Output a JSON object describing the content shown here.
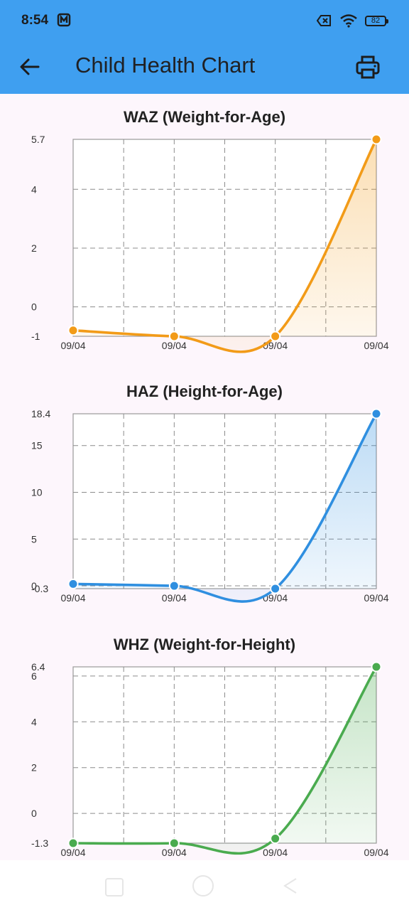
{
  "status_bar": {
    "time": "8:54",
    "battery": "82",
    "icons": [
      "notification-icon",
      "sim-off-icon",
      "wifi-icon",
      "battery-icon"
    ]
  },
  "app_bar": {
    "title": "Child Health Chart",
    "back_icon": "arrow-left-icon",
    "print_icon": "printer-icon",
    "background": "#3f9ff0"
  },
  "chart_data": [
    {
      "type": "area",
      "title": "WAZ (Weight-for-Age)",
      "color": "#f29b18",
      "categories": [
        "09/04",
        "09/04",
        "09/04",
        "09/04"
      ],
      "x": [
        0,
        1,
        2,
        3
      ],
      "values": [
        -0.8,
        -1.0,
        -1.0,
        5.7
      ],
      "ylim": [
        -1,
        5.7
      ],
      "y_ticks": [
        -1,
        0,
        2,
        4,
        5.7
      ],
      "grid": true
    },
    {
      "type": "area",
      "title": "HAZ (Height-for-Age)",
      "color": "#2f8fe0",
      "categories": [
        "09/04",
        "09/04",
        "09/04",
        "09/04"
      ],
      "x": [
        0,
        1,
        2,
        3
      ],
      "values": [
        0.2,
        0.0,
        -0.3,
        18.4
      ],
      "ylim": [
        -0.3,
        18.4
      ],
      "y_ticks": [
        -0.3,
        0,
        5,
        10,
        15,
        18.4
      ],
      "grid": true
    },
    {
      "type": "area",
      "title": "WHZ (Weight-for-Height)",
      "color": "#4aab4f",
      "categories": [
        "09/04",
        "09/04",
        "09/04",
        "09/04"
      ],
      "x": [
        0,
        1,
        2,
        3
      ],
      "values": [
        -1.3,
        -1.3,
        -1.1,
        6.4
      ],
      "ylim": [
        -1.3,
        6.4
      ],
      "y_ticks": [
        -1.3,
        0,
        2,
        4,
        6,
        6.4
      ],
      "grid": true
    }
  ]
}
